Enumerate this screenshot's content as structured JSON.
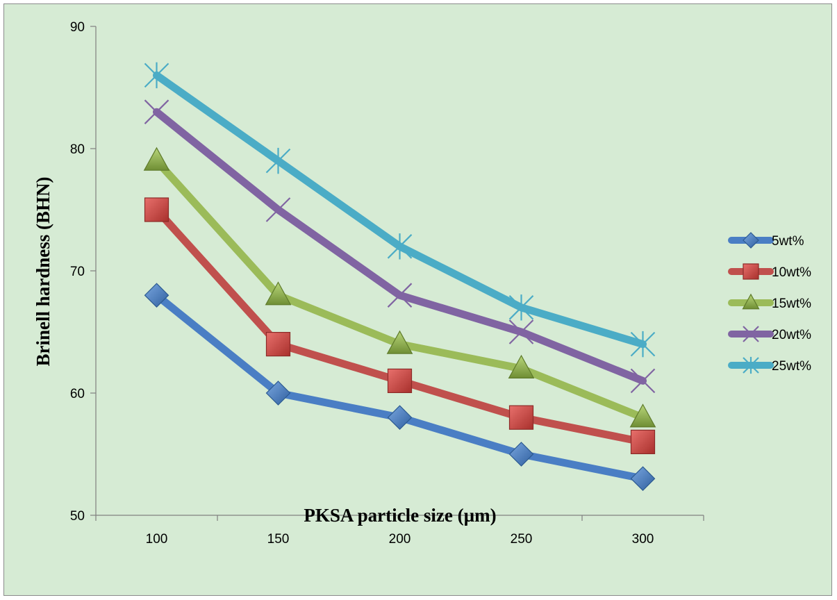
{
  "chart_data": {
    "type": "line",
    "title": "",
    "xlabel": "PKSA particle size (µm)",
    "ylabel": "Brinell hardness (BHN)",
    "categories": [
      "100",
      "150",
      "200",
      "250",
      "300"
    ],
    "ylim": [
      50,
      90
    ],
    "yticks": [
      "50",
      "60",
      "70",
      "80",
      "90"
    ],
    "grid": false,
    "legend_position": "right",
    "series": [
      {
        "name": "5wt%",
        "values": [
          68,
          60,
          58,
          55,
          53
        ],
        "color": "#4a7ec4",
        "marker": "diamond-icon"
      },
      {
        "name": "10wt%",
        "values": [
          75,
          64,
          61,
          58,
          56
        ],
        "color": "#c0504d",
        "marker": "square-icon"
      },
      {
        "name": "15wt%",
        "values": [
          79,
          68,
          64,
          62,
          58
        ],
        "color": "#9bbb59",
        "marker": "triangle-icon"
      },
      {
        "name": "20wt%",
        "values": [
          83,
          75,
          68,
          65,
          61
        ],
        "color": "#8064a2",
        "marker": "x-icon"
      },
      {
        "name": "25wt%",
        "values": [
          86,
          79,
          72,
          67,
          64
        ],
        "color": "#4bacc6",
        "marker": "star-icon"
      }
    ]
  }
}
